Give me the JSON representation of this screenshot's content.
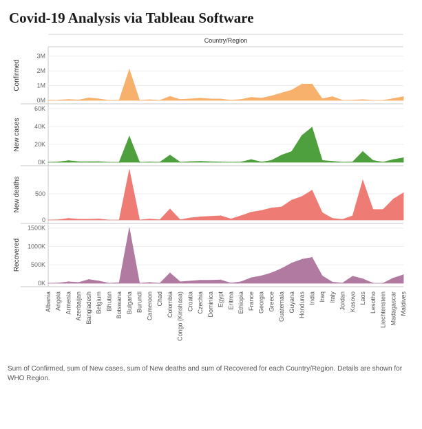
{
  "title": "Covid-19 Analysis via Tableau Software",
  "caption": "Sum of Confirmed, sum of New cases, sum of New deaths and sum of Recovered for each Country/Region.  Details are shown for WHO Region.",
  "chart_data": {
    "type": "area",
    "column_header": "Country/Region",
    "categories": [
      "Albania",
      "Angola",
      "Armenia",
      "Azerbaijan",
      "Bangladesh",
      "Belgium",
      "Bhutan",
      "Botswana",
      "Bulgaria",
      "Burundi",
      "Cameroon",
      "Chad",
      "Colombia",
      "Congo (Kinshasa)",
      "Croatia",
      "Czechia",
      "Dominica",
      "Egypt",
      "Eritrea",
      "Ethiopia",
      "France",
      "Georgia",
      "Greece",
      "Guatemala",
      "Guyana",
      "Honduras",
      "India",
      "Iraq",
      "Italy",
      "Jordan",
      "Kosovo",
      "Laos",
      "Lesotho",
      "Liechtenstein",
      "Madagascar",
      "Maldives"
    ],
    "panels": [
      {
        "ylabel": "Confirmed",
        "color": "#f7b16d",
        "ylim": [
          0,
          3500000
        ],
        "ticks": [
          0,
          1000000,
          2000000,
          3000000
        ],
        "tick_labels": [
          "0M",
          "1M",
          "2M",
          "3M"
        ],
        "values": [
          5000,
          12000,
          60000,
          30000,
          170000,
          100000,
          200,
          20000,
          2100000,
          400,
          45000,
          1200,
          270000,
          60000,
          100000,
          150000,
          100000,
          94000,
          10000,
          65000,
          200000,
          150000,
          300000,
          500000,
          700000,
          1100000,
          1100000,
          112000,
          250000,
          5000,
          14000,
          50000,
          1000,
          100,
          120000,
          250000
        ]
      },
      {
        "ylabel": "New cases",
        "color": "#4e9f3d",
        "ylim": [
          0,
          63000
        ],
        "ticks": [
          0,
          20000,
          40000,
          60000
        ],
        "tick_labels": [
          "0K",
          "20K",
          "40K",
          "60K"
        ],
        "values": [
          0,
          400,
          1800,
          600,
          500,
          600,
          10,
          100,
          29000,
          30,
          300,
          80,
          8000,
          100,
          600,
          1000,
          500,
          300,
          100,
          300,
          3000,
          200,
          2000,
          8000,
          12000,
          30000,
          39000,
          2000,
          1000,
          50,
          400,
          12000,
          2000,
          100,
          3000,
          5000
        ]
      },
      {
        "ylabel": "New deaths",
        "color": "#ef7b75",
        "ylim": [
          0,
          1000
        ],
        "ticks": [
          0,
          500
        ],
        "tick_labels": [
          "0",
          "500"
        ],
        "values": [
          0,
          5,
          30,
          15,
          15,
          20,
          0,
          0,
          960,
          0,
          20,
          5,
          210,
          5,
          40,
          60,
          70,
          80,
          20,
          80,
          150,
          180,
          230,
          250,
          380,
          450,
          570,
          140,
          30,
          10,
          80,
          760,
          200,
          200,
          400,
          520
        ]
      },
      {
        "ylabel": "Recovered",
        "color": "#b07aa1",
        "ylim": [
          0,
          1570000
        ],
        "ticks": [
          0,
          500000,
          1000000,
          1500000
        ],
        "tick_labels": [
          "0K",
          "500K",
          "1000K",
          "1500K"
        ],
        "values": [
          0,
          8000,
          40000,
          20000,
          100000,
          60000,
          0,
          15000,
          1500000,
          300,
          20000,
          800,
          280000,
          40000,
          60000,
          80000,
          80000,
          90000,
          5000,
          40000,
          150000,
          200000,
          280000,
          400000,
          550000,
          650000,
          700000,
          200000,
          30000,
          3000,
          190000,
          120000,
          2000,
          100,
          140000,
          230000
        ]
      }
    ]
  }
}
